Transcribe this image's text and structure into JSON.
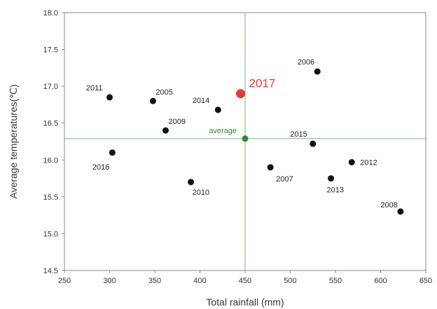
{
  "chart_data": {
    "type": "scatter",
    "xlabel": "Total rainfall  (mm)",
    "ylabel": "Average temperatures(℃)",
    "xlim": [
      250,
      650
    ],
    "ylim": [
      14.5,
      18.0
    ],
    "xticks": [
      "250",
      "300",
      "350",
      "400",
      "450",
      "500",
      "550",
      "600",
      "650"
    ],
    "yticks": [
      "14.5",
      "15.0",
      "15.5",
      "16.0",
      "16.5",
      "17.0",
      "17.5",
      "18.0"
    ],
    "grid": false,
    "points": [
      {
        "label": "2005",
        "x": 348,
        "y": 16.8
      },
      {
        "label": "2006",
        "x": 530,
        "y": 17.2
      },
      {
        "label": "2007",
        "x": 478,
        "y": 15.9
      },
      {
        "label": "2008",
        "x": 622,
        "y": 15.3
      },
      {
        "label": "2009",
        "x": 362,
        "y": 16.4
      },
      {
        "label": "2010",
        "x": 390,
        "y": 15.7
      },
      {
        "label": "2011",
        "x": 300,
        "y": 16.85
      },
      {
        "label": "2012",
        "x": 568,
        "y": 15.97
      },
      {
        "label": "2013",
        "x": 545,
        "y": 15.75
      },
      {
        "label": "2014",
        "x": 420,
        "y": 16.68
      },
      {
        "label": "2015",
        "x": 525,
        "y": 16.22
      },
      {
        "label": "2016",
        "x": 303,
        "y": 16.1
      },
      {
        "label": "2017",
        "x": 445,
        "y": 16.9,
        "highlight": true
      }
    ],
    "average": {
      "label": "average",
      "x": 450,
      "y": 16.29
    },
    "colors": {
      "points": "#111111",
      "highlight": "#e23b3b",
      "average": "#2e8b2e",
      "reference_lines": "#79b879",
      "frame": "#888888"
    }
  }
}
